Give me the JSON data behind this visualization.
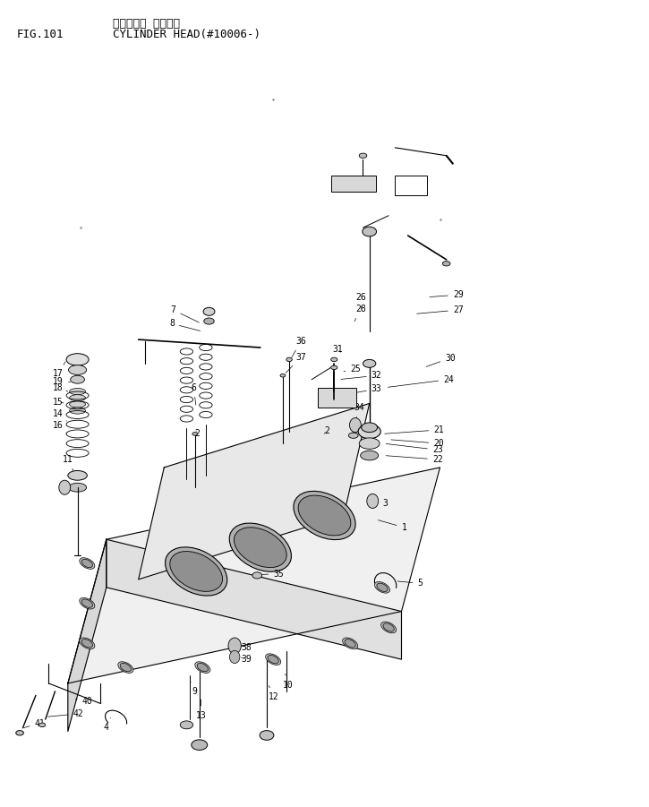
{
  "title_japanese": "シリンダ・ ヘッド・",
  "title_english": "CYLINDER HEAD(#10006-)",
  "fig_label": "FIG.101",
  "bg_color": "#ffffff",
  "line_color": "#000000",
  "text_color": "#000000",
  "fig_width": 7.25,
  "fig_height": 9.01,
  "dpi": 100,
  "font_size_header": 9,
  "font_size_fig": 9,
  "font_size_parts": 7
}
